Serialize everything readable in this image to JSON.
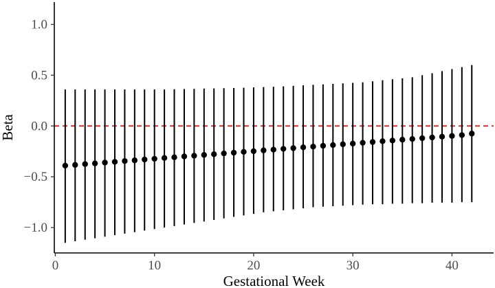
{
  "chart_data": {
    "type": "scatter",
    "title": "",
    "xlabel": "Gestational Week",
    "ylabel": "Beta",
    "xlim": [
      -0.1,
      44.2
    ],
    "ylim": [
      -1.25,
      1.22
    ],
    "x_ticks": [
      0,
      10,
      20,
      30,
      40
    ],
    "y_ticks": [
      -1.0,
      -0.5,
      0.0,
      0.5,
      1.0
    ],
    "y_tick_labels": [
      "−1.0",
      "−0.5",
      "0.0",
      "0.5",
      "1.0"
    ],
    "reference_line": {
      "y": 0,
      "color": "#ff0000",
      "style": "dashed"
    },
    "point_color": "#000000",
    "grid": false,
    "series": [
      {
        "x": [
          1,
          2,
          3,
          4,
          5,
          6,
          7,
          8,
          9,
          10,
          11,
          12,
          13,
          14,
          15,
          16,
          17,
          18,
          19,
          20,
          21,
          22,
          23,
          24,
          25,
          26,
          27,
          28,
          29,
          30,
          31,
          32,
          33,
          34,
          35,
          36,
          37,
          38,
          39,
          40,
          41,
          42
        ],
        "beta": [
          -0.39,
          -0.383,
          -0.375,
          -0.368,
          -0.36,
          -0.353,
          -0.345,
          -0.338,
          -0.33,
          -0.323,
          -0.315,
          -0.308,
          -0.3,
          -0.293,
          -0.285,
          -0.278,
          -0.27,
          -0.263,
          -0.255,
          -0.248,
          -0.24,
          -0.233,
          -0.225,
          -0.218,
          -0.21,
          -0.203,
          -0.195,
          -0.188,
          -0.18,
          -0.173,
          -0.165,
          -0.158,
          -0.15,
          -0.143,
          -0.135,
          -0.128,
          -0.12,
          -0.113,
          -0.105,
          -0.098,
          -0.09,
          -0.075
        ],
        "lower": [
          -1.15,
          -1.135,
          -1.12,
          -1.105,
          -1.09,
          -1.075,
          -1.06,
          -1.045,
          -1.03,
          -1.015,
          -1.0,
          -0.985,
          -0.97,
          -0.955,
          -0.94,
          -0.925,
          -0.91,
          -0.895,
          -0.88,
          -0.865,
          -0.85,
          -0.84,
          -0.83,
          -0.82,
          -0.81,
          -0.8,
          -0.795,
          -0.79,
          -0.785,
          -0.78,
          -0.775,
          -0.77,
          -0.77,
          -0.765,
          -0.765,
          -0.76,
          -0.76,
          -0.755,
          -0.755,
          -0.755,
          -0.75,
          -0.75
        ],
        "upper": [
          0.36,
          0.36,
          0.36,
          0.36,
          0.36,
          0.36,
          0.36,
          0.36,
          0.36,
          0.36,
          0.36,
          0.362,
          0.364,
          0.366,
          0.368,
          0.37,
          0.372,
          0.374,
          0.377,
          0.38,
          0.383,
          0.386,
          0.39,
          0.395,
          0.4,
          0.405,
          0.41,
          0.415,
          0.42,
          0.425,
          0.43,
          0.44,
          0.45,
          0.46,
          0.47,
          0.48,
          0.5,
          0.52,
          0.54,
          0.56,
          0.58,
          0.6
        ]
      }
    ]
  }
}
